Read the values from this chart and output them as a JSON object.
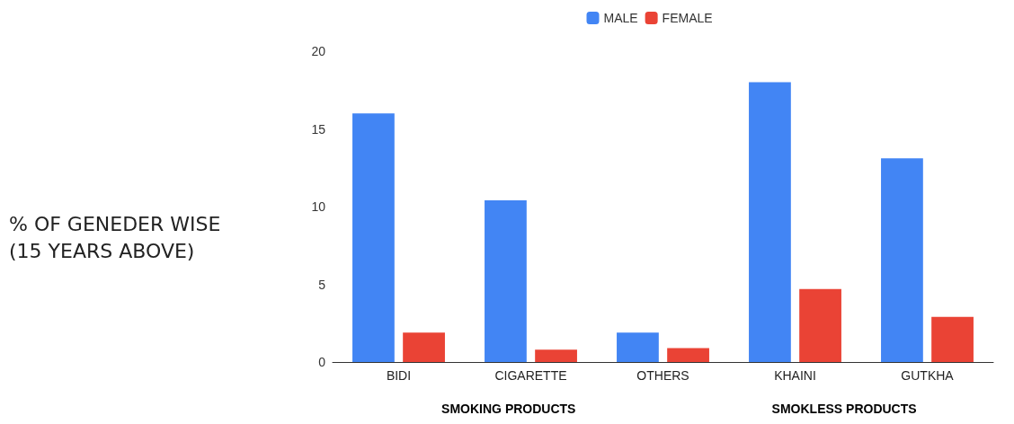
{
  "chart_data": {
    "type": "bar",
    "ylabel": "% OF GENEDER WISE (15 YEARS ABOVE)",
    "categories": [
      "BIDI",
      "CIGARETTE",
      "OTHERS",
      "KHAINI",
      "GUTKHA"
    ],
    "series": [
      {
        "name": "MALE",
        "color": "#4285f4",
        "values": [
          16,
          10.4,
          1.9,
          18,
          13.1
        ]
      },
      {
        "name": "FEMALE",
        "color": "#ea4335",
        "values": [
          1.9,
          0.8,
          0.9,
          4.7,
          2.9
        ]
      }
    ],
    "ylim": [
      0,
      20
    ],
    "yticks": [
      0,
      5,
      10,
      15,
      20
    ],
    "grid": false,
    "legend": "top",
    "annotations": [
      "SMOKING PRODUCTS",
      "SMOKLESS PRODUCTS"
    ]
  }
}
